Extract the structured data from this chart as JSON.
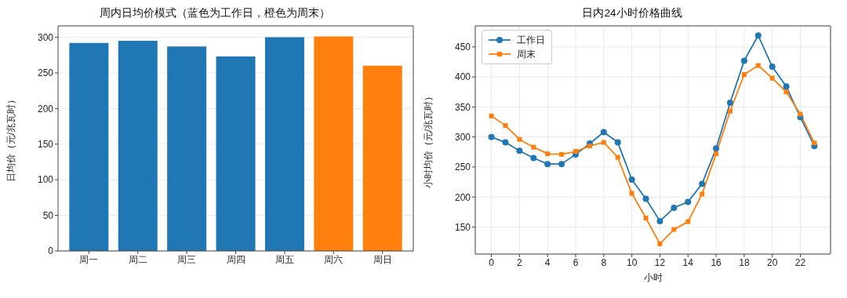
{
  "chart_data": [
    {
      "type": "bar",
      "title": "周内日均价模式（蓝色为工作日，橙色为周末）",
      "ylabel": "日均价（元/兆瓦时）",
      "categories": [
        "周一",
        "周二",
        "周三",
        "周四",
        "周五",
        "周六",
        "周日"
      ],
      "values": [
        292,
        295,
        287,
        273,
        300,
        301,
        260
      ],
      "colors": [
        "#1f77b4",
        "#1f77b4",
        "#1f77b4",
        "#1f77b4",
        "#1f77b4",
        "#ff7f0e",
        "#ff7f0e"
      ],
      "ylim": [
        0,
        316
      ],
      "yticks": [
        0,
        50,
        100,
        150,
        200,
        250,
        300
      ],
      "grid": "y",
      "legend": false
    },
    {
      "type": "line",
      "title": "日内24小时价格曲线",
      "xlabel": "小时",
      "ylabel": "小时均价（元/兆瓦时）",
      "x": [
        0,
        1,
        2,
        3,
        4,
        5,
        6,
        7,
        8,
        9,
        10,
        11,
        12,
        13,
        14,
        15,
        16,
        17,
        18,
        19,
        20,
        21,
        22,
        23
      ],
      "series": [
        {
          "name": "工作日",
          "color": "#1f77b4",
          "marker": "circle",
          "values": [
            300,
            291,
            277,
            265,
            255,
            255,
            271,
            289,
            308,
            291,
            229,
            197,
            160,
            182,
            192,
            222,
            281,
            357,
            427,
            469,
            417,
            384,
            333,
            285
          ]
        },
        {
          "name": "周末",
          "color": "#ff7f0e",
          "marker": "square",
          "values": [
            335,
            319,
            296,
            283,
            272,
            271,
            276,
            285,
            291,
            266,
            206,
            165,
            122,
            146,
            159,
            205,
            272,
            343,
            404,
            419,
            398,
            375,
            338,
            290
          ]
        }
      ],
      "xlim": [
        -1.15,
        24.15
      ],
      "xticks": [
        0,
        2,
        4,
        6,
        8,
        10,
        12,
        14,
        16,
        18,
        20,
        22
      ],
      "ylim": [
        105,
        485
      ],
      "yticks": [
        150,
        200,
        250,
        300,
        350,
        400,
        450
      ],
      "grid": true,
      "legend": "top left",
      "line_style": "solid"
    }
  ]
}
